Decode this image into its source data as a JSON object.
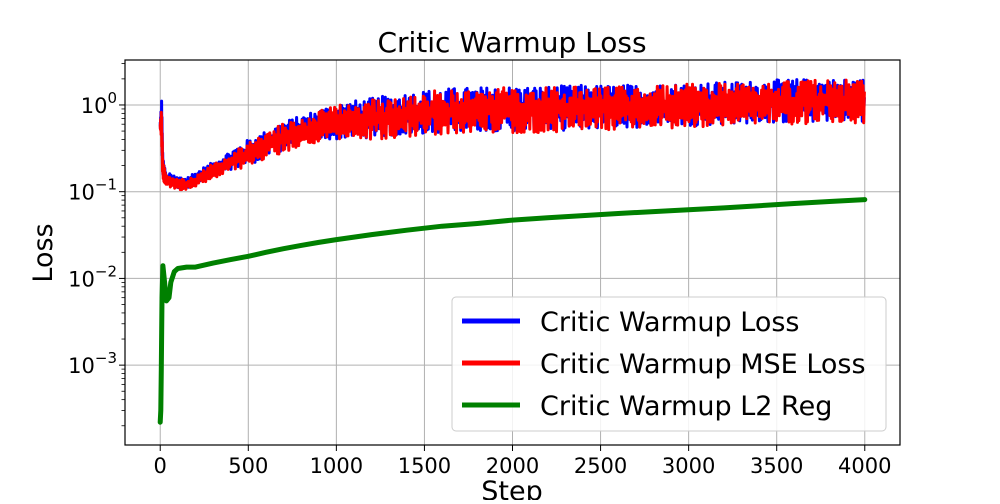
{
  "chart_data": {
    "type": "line",
    "title": "Critic Warmup Loss",
    "xlabel": "Step",
    "ylabel": "Loss",
    "xlim": [
      -200,
      4200
    ],
    "ylim": [
      0.00012,
      3.3
    ],
    "yscale": "log",
    "grid": true,
    "legend_position": "lower-right",
    "x_ticks": [
      {
        "value": 0,
        "label": "0"
      },
      {
        "value": 500,
        "label": "500"
      },
      {
        "value": 1000,
        "label": "1000"
      },
      {
        "value": 1500,
        "label": "1500"
      },
      {
        "value": 2000,
        "label": "2000"
      },
      {
        "value": 2500,
        "label": "2500"
      },
      {
        "value": 3000,
        "label": "3000"
      },
      {
        "value": 3500,
        "label": "3500"
      },
      {
        "value": 4000,
        "label": "4000"
      }
    ],
    "y_ticks": [
      {
        "value": 0.001,
        "base": "10",
        "exp": "−3"
      },
      {
        "value": 0.01,
        "base": "10",
        "exp": "−2"
      },
      {
        "value": 0.1,
        "base": "10",
        "exp": "−1"
      },
      {
        "value": 1,
        "base": "10",
        "exp": "0"
      }
    ],
    "series": [
      {
        "name": "Critic Warmup Loss",
        "color": "#0000ff",
        "band": true,
        "x": [
          0,
          8,
          15,
          30,
          60,
          100,
          150,
          200,
          300,
          400,
          500,
          600,
          700,
          800,
          900,
          1000,
          1200,
          1400,
          1600,
          1800,
          2000,
          2200,
          2400,
          2600,
          2800,
          3000,
          3200,
          3400,
          3600,
          3800,
          4000
        ],
        "upper": [
          0.65,
          1.35,
          0.25,
          0.17,
          0.16,
          0.15,
          0.15,
          0.17,
          0.22,
          0.3,
          0.4,
          0.5,
          0.65,
          0.75,
          0.9,
          1.05,
          1.2,
          1.4,
          1.55,
          1.6,
          1.65,
          1.65,
          1.7,
          1.7,
          1.75,
          1.8,
          1.85,
          1.9,
          2.0,
          2.0,
          2.0
        ],
        "lower": [
          0.55,
          0.3,
          0.15,
          0.13,
          0.12,
          0.11,
          0.11,
          0.12,
          0.15,
          0.18,
          0.2,
          0.25,
          0.3,
          0.35,
          0.38,
          0.4,
          0.42,
          0.45,
          0.48,
          0.5,
          0.5,
          0.5,
          0.52,
          0.55,
          0.55,
          0.57,
          0.6,
          0.62,
          0.62,
          0.65,
          0.65
        ]
      },
      {
        "name": "Critic Warmup MSE Loss",
        "color": "#ff0000",
        "band": true,
        "x": [
          0,
          8,
          15,
          30,
          60,
          100,
          150,
          200,
          300,
          400,
          500,
          600,
          700,
          800,
          900,
          1000,
          1200,
          1400,
          1600,
          1800,
          2000,
          2200,
          2400,
          2600,
          2800,
          3000,
          3200,
          3400,
          3600,
          3800,
          4000
        ],
        "upper": [
          0.6,
          1.3,
          0.23,
          0.16,
          0.15,
          0.14,
          0.14,
          0.16,
          0.21,
          0.28,
          0.38,
          0.48,
          0.62,
          0.72,
          0.85,
          1.0,
          1.15,
          1.35,
          1.5,
          1.55,
          1.6,
          1.6,
          1.65,
          1.65,
          1.7,
          1.75,
          1.8,
          1.85,
          1.9,
          1.95,
          1.95
        ],
        "lower": [
          0.5,
          0.28,
          0.14,
          0.12,
          0.11,
          0.105,
          0.105,
          0.11,
          0.14,
          0.17,
          0.19,
          0.24,
          0.28,
          0.33,
          0.36,
          0.38,
          0.4,
          0.43,
          0.46,
          0.48,
          0.48,
          0.48,
          0.5,
          0.52,
          0.53,
          0.55,
          0.58,
          0.6,
          0.6,
          0.62,
          0.62
        ]
      },
      {
        "name": "Critic Warmup L2 Reg",
        "color": "#008000",
        "band": false,
        "x": [
          0,
          3,
          6,
          10,
          15,
          25,
          35,
          50,
          60,
          80,
          100,
          150,
          200,
          300,
          400,
          500,
          600,
          700,
          800,
          900,
          1000,
          1200,
          1400,
          1600,
          1800,
          2000,
          2200,
          2400,
          2600,
          2800,
          3000,
          3200,
          3400,
          3600,
          3800,
          4000
        ],
        "values": [
          0.00022,
          0.0003,
          0.0009,
          0.006,
          0.014,
          0.009,
          0.0055,
          0.006,
          0.009,
          0.012,
          0.013,
          0.0135,
          0.0135,
          0.015,
          0.0165,
          0.018,
          0.02,
          0.022,
          0.024,
          0.026,
          0.028,
          0.032,
          0.036,
          0.04,
          0.043,
          0.047,
          0.05,
          0.053,
          0.056,
          0.059,
          0.062,
          0.065,
          0.069,
          0.073,
          0.077,
          0.081
        ]
      }
    ]
  }
}
